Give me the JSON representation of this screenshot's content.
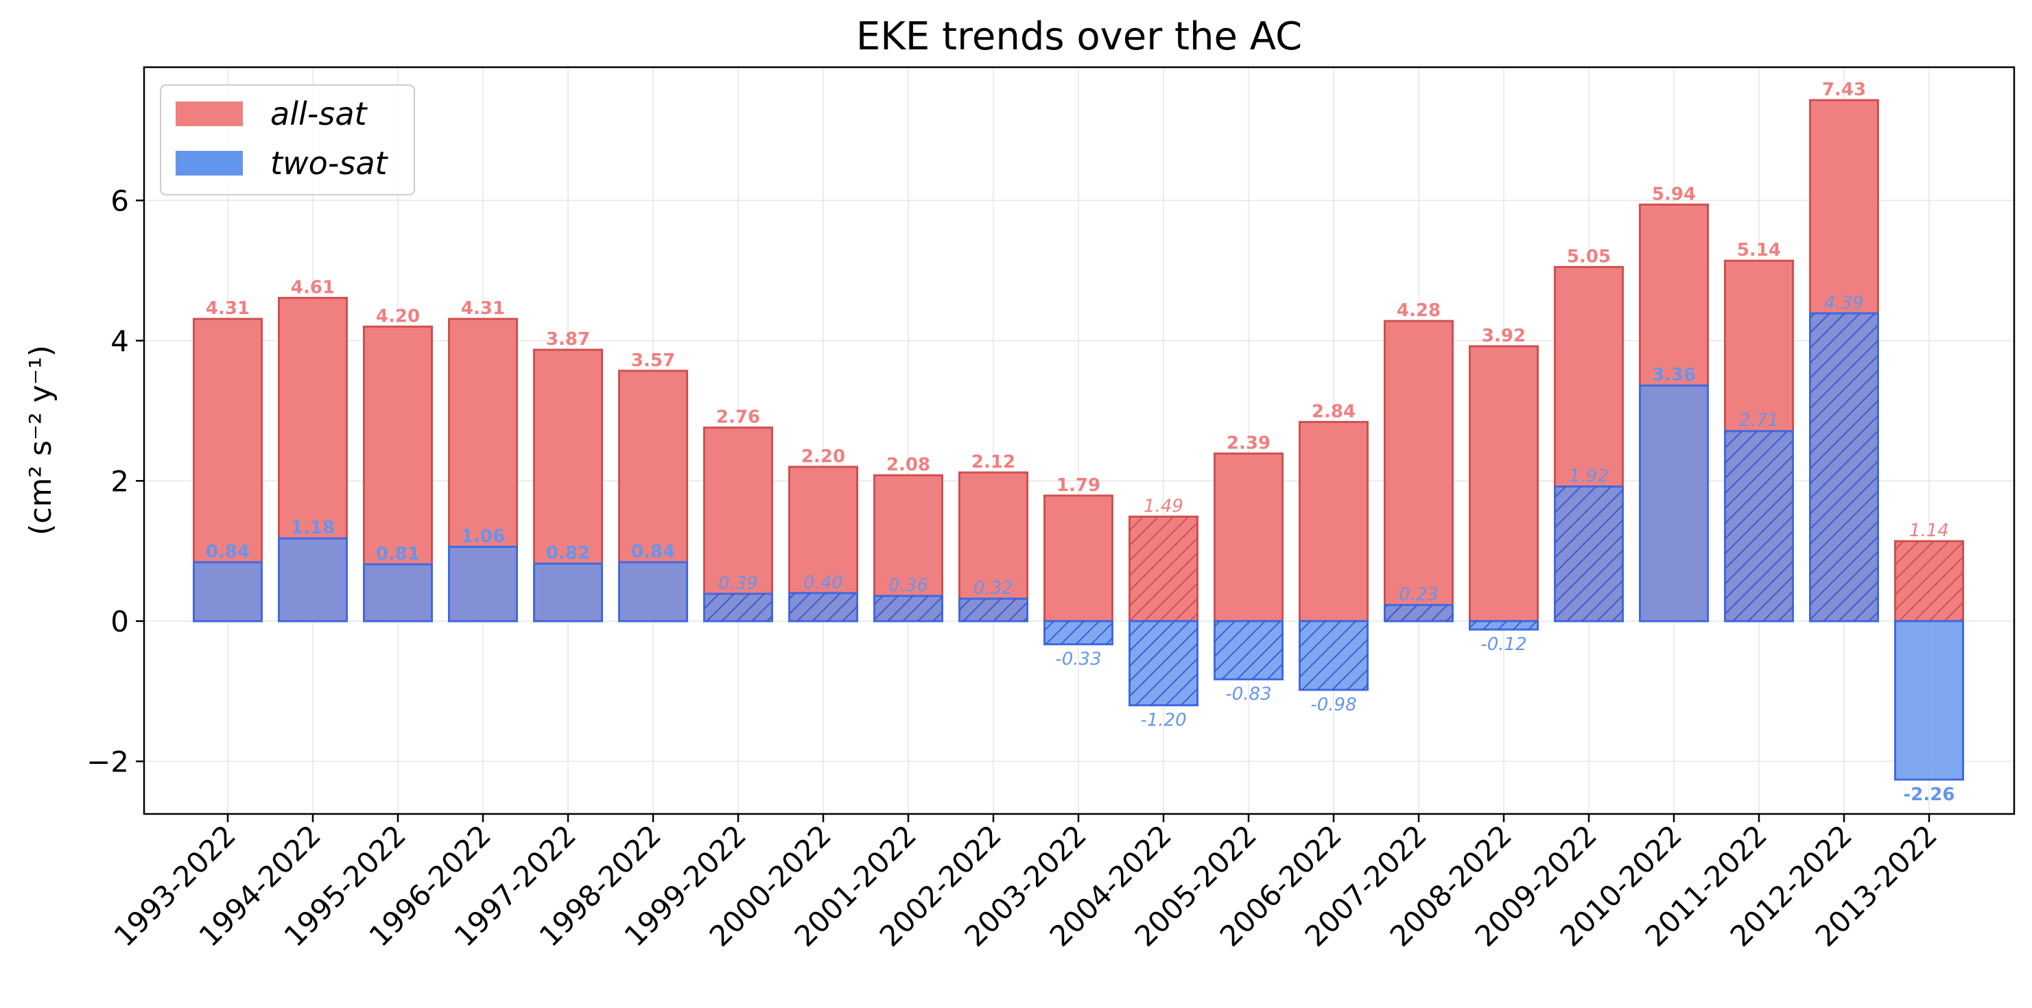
{
  "chart_data": {
    "type": "bar",
    "title": "EKE trends over the AC",
    "ylabel": "(cm² s⁻² y⁻¹)",
    "xlabel": "",
    "ylim": [
      -2.75,
      7.9
    ],
    "yticks": [
      -2,
      0,
      2,
      4,
      6
    ],
    "grid": true,
    "legend_position": "top-left",
    "categories": [
      "1993-2022",
      "1994-2022",
      "1995-2022",
      "1996-2022",
      "1997-2022",
      "1998-2022",
      "1999-2022",
      "2000-2022",
      "2001-2022",
      "2002-2022",
      "2003-2022",
      "2004-2022",
      "2005-2022",
      "2006-2022",
      "2007-2022",
      "2008-2022",
      "2009-2022",
      "2010-2022",
      "2011-2022",
      "2012-2022",
      "2013-2022"
    ],
    "series": [
      {
        "name": "all-sat",
        "color": "#f08080",
        "edge_color": "#d05050",
        "label_color": "#f08080",
        "values": [
          4.31,
          4.61,
          4.2,
          4.31,
          3.87,
          3.57,
          2.76,
          2.2,
          2.08,
          2.12,
          1.79,
          1.49,
          2.39,
          2.84,
          4.28,
          3.92,
          5.05,
          5.94,
          5.14,
          7.43,
          1.14
        ],
        "labels": [
          "4.31",
          "4.61",
          "4.20",
          "4.31",
          "3.87",
          "3.57",
          "2.76",
          "2.20",
          "2.08",
          "2.12",
          "1.79",
          "1.49",
          "2.39",
          "2.84",
          "4.28",
          "3.92",
          "5.05",
          "5.94",
          "5.14",
          "7.43",
          "1.14"
        ],
        "significant": [
          true,
          true,
          true,
          true,
          true,
          true,
          true,
          true,
          true,
          true,
          true,
          false,
          true,
          true,
          true,
          true,
          true,
          true,
          true,
          true,
          false
        ],
        "hatched": [
          false,
          false,
          false,
          false,
          false,
          false,
          false,
          false,
          false,
          false,
          false,
          true,
          false,
          false,
          false,
          false,
          false,
          false,
          false,
          false,
          true
        ]
      },
      {
        "name": "two-sat",
        "color": "#6495ed",
        "edge_color": "#4169e1",
        "label_color": "#6495ed",
        "values": [
          0.84,
          1.18,
          0.81,
          1.06,
          0.82,
          0.84,
          0.39,
          0.4,
          0.36,
          0.32,
          -0.33,
          -1.2,
          -0.83,
          -0.98,
          0.23,
          -0.12,
          1.92,
          3.36,
          2.71,
          4.39,
          -2.26
        ],
        "labels": [
          "0.84",
          "1.18",
          "0.81",
          "1.06",
          "0.82",
          "0.84",
          "0.39",
          "0.40",
          "0.36",
          "0.32",
          "-0.33",
          "-1.20",
          "-0.83",
          "-0.98",
          "0.23",
          "-0.12",
          "1.92",
          "3.36",
          "2.71",
          "4.39",
          "-2.26"
        ],
        "significant": [
          true,
          true,
          true,
          true,
          true,
          true,
          false,
          false,
          false,
          false,
          false,
          false,
          false,
          false,
          false,
          false,
          false,
          true,
          false,
          false,
          true
        ],
        "hatched": [
          false,
          false,
          false,
          false,
          false,
          false,
          true,
          true,
          true,
          true,
          true,
          true,
          true,
          true,
          true,
          true,
          true,
          false,
          true,
          true,
          false
        ]
      }
    ]
  }
}
